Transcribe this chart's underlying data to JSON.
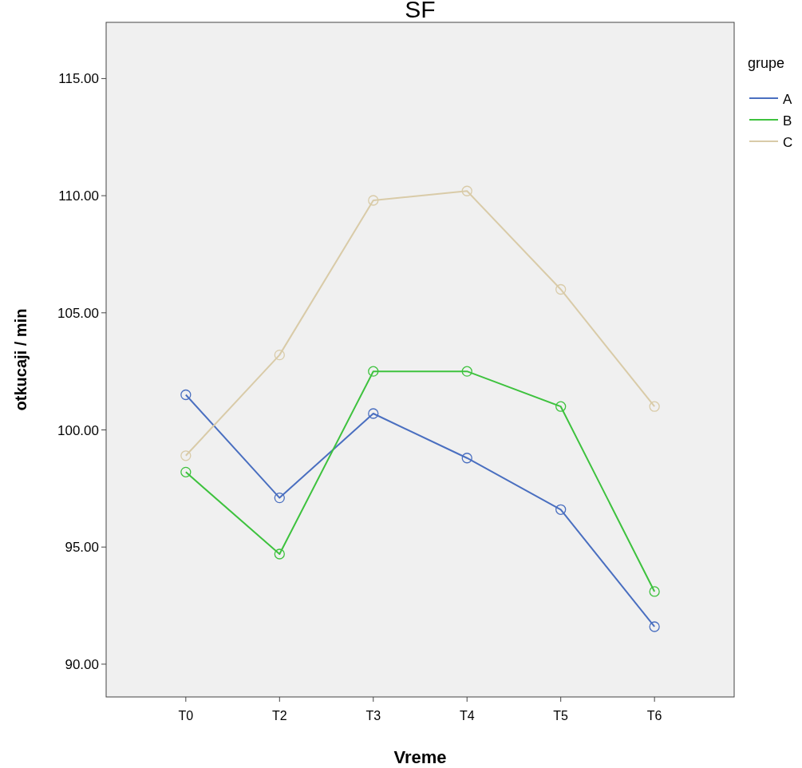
{
  "chart_data": {
    "type": "line",
    "title": "SF",
    "xlabel": "Vreme",
    "ylabel": "otkucaji / min",
    "legend_title": "grupe",
    "categories": [
      "T0",
      "T2",
      "T3",
      "T4",
      "T5",
      "T6"
    ],
    "series": [
      {
        "name": "A",
        "color": "#4a6fc0",
        "values": [
          101.5,
          97.1,
          100.7,
          98.8,
          96.6,
          91.6
        ]
      },
      {
        "name": "B",
        "color": "#3ec23e",
        "values": [
          98.2,
          94.7,
          102.5,
          102.5,
          101.0,
          93.1
        ]
      },
      {
        "name": "C",
        "color": "#d9cba8",
        "values": [
          98.9,
          103.2,
          109.8,
          110.2,
          106.0,
          101.0
        ]
      }
    ],
    "ylim": [
      88.6,
      117.4
    ],
    "yticks": [
      {
        "value": 90,
        "label": "90.00"
      },
      {
        "value": 95,
        "label": "95.00"
      },
      {
        "value": 100,
        "label": "100.00"
      },
      {
        "value": 105,
        "label": "105.00"
      },
      {
        "value": 110,
        "label": "110.00"
      },
      {
        "value": 115,
        "label": "115.00"
      }
    ],
    "grid": false,
    "legend": "top right",
    "marker": "circle",
    "line_style": "solid"
  }
}
